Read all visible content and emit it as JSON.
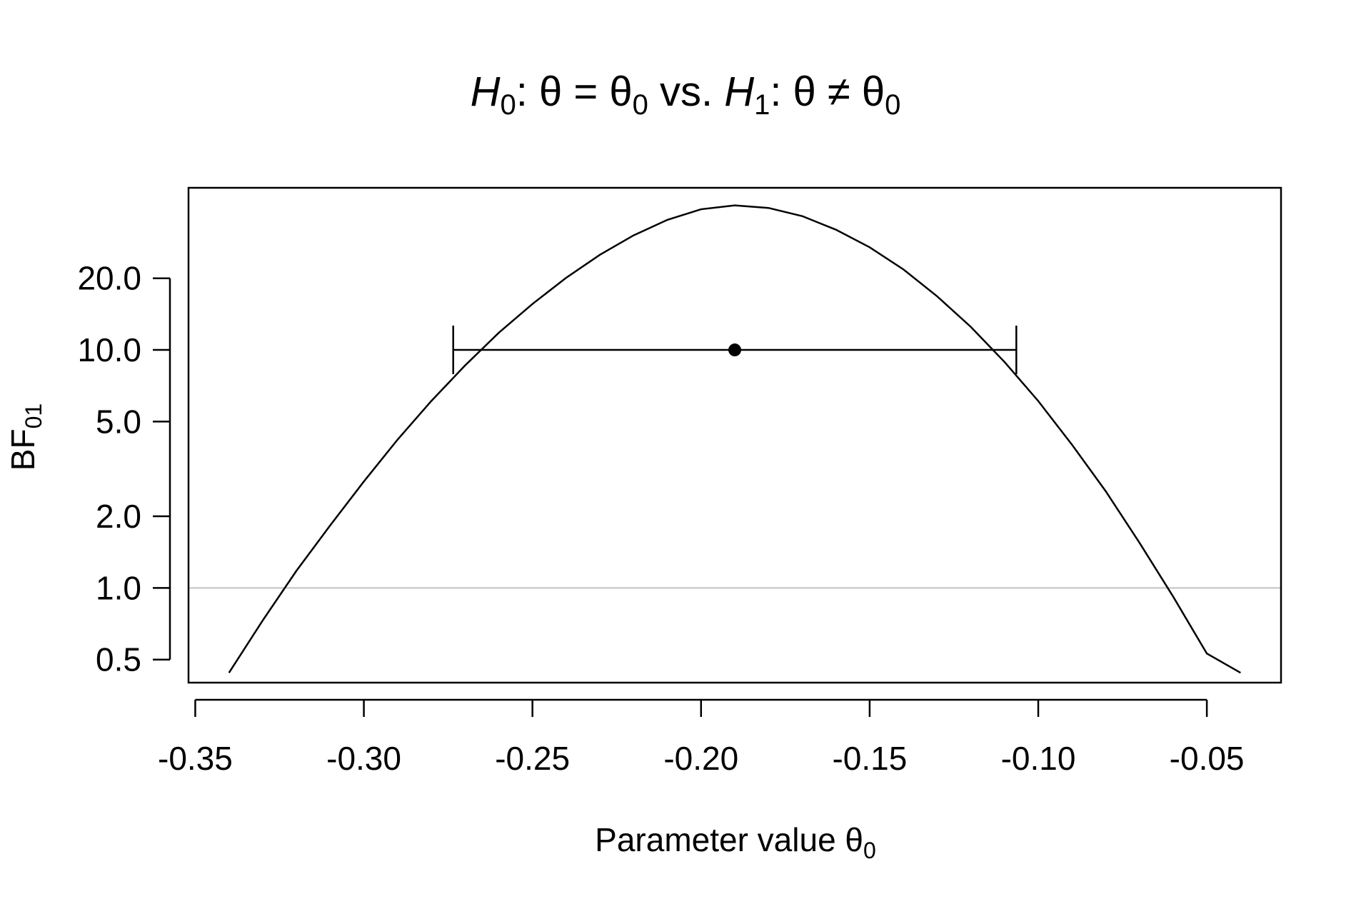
{
  "chart_data": {
    "type": "line",
    "title": {
      "h0": "H",
      "h0_sub": "0",
      "eq_part": ": θ = θ",
      "eq_sub": "0",
      "vs": " vs. ",
      "h1": "H",
      "h1_sub": "1",
      "ne_part": ": θ ≠ θ",
      "ne_sub": "0"
    },
    "xlabel": {
      "main": "Parameter value θ",
      "sub": "0"
    },
    "ylabel": {
      "main": "BF",
      "sub": "01"
    },
    "y_scale": "log",
    "xlim": [
      -0.352,
      -0.028
    ],
    "ylim": [
      0.4,
      48
    ],
    "x_ticks": [
      {
        "value": -0.35,
        "label": "-0.35"
      },
      {
        "value": -0.3,
        "label": "-0.30"
      },
      {
        "value": -0.25,
        "label": "-0.25"
      },
      {
        "value": -0.2,
        "label": "-0.20"
      },
      {
        "value": -0.15,
        "label": "-0.15"
      },
      {
        "value": -0.1,
        "label": "-0.10"
      },
      {
        "value": -0.05,
        "label": "-0.05"
      }
    ],
    "y_ticks": [
      {
        "value": 0.5,
        "label": "0.5"
      },
      {
        "value": 1.0,
        "label": "1.0"
      },
      {
        "value": 2.0,
        "label": "2.0"
      },
      {
        "value": 5.0,
        "label": "5.0"
      },
      {
        "value": 10.0,
        "label": "10.0"
      },
      {
        "value": 20.0,
        "label": "20.0"
      }
    ],
    "series": [
      {
        "x": [
          -0.34,
          -0.33,
          -0.32,
          -0.31,
          -0.3,
          -0.29,
          -0.28,
          -0.27,
          -0.26,
          -0.25,
          -0.24,
          -0.23,
          -0.22,
          -0.21,
          -0.2,
          -0.19,
          -0.18,
          -0.17,
          -0.16,
          -0.15,
          -0.14,
          -0.13,
          -0.12,
          -0.11,
          -0.1,
          -0.09,
          -0.08,
          -0.07,
          -0.06,
          -0.05,
          -0.04
        ],
        "y": [
          0.44,
          0.73,
          1.18,
          1.83,
          2.8,
          4.2,
          6.1,
          8.6,
          11.8,
          15.6,
          20.1,
          25.1,
          30.3,
          35.2,
          39.0,
          40.5,
          39.5,
          36.5,
          32.0,
          27.0,
          21.8,
          16.8,
          12.5,
          8.9,
          6.1,
          4.0,
          2.55,
          1.55,
          0.92,
          0.53,
          0.44
        ]
      }
    ],
    "reference_line": {
      "y": 1.0,
      "color": "#cccccc"
    },
    "interval": {
      "lower": -0.2735,
      "upper": -0.1065,
      "y": 10.0
    },
    "point_estimate": {
      "x": -0.19,
      "y": 10.0
    },
    "colors": {
      "line": "#000000",
      "reference": "#cccccc",
      "frame": "#000000"
    },
    "grid": false,
    "legend": "none"
  }
}
